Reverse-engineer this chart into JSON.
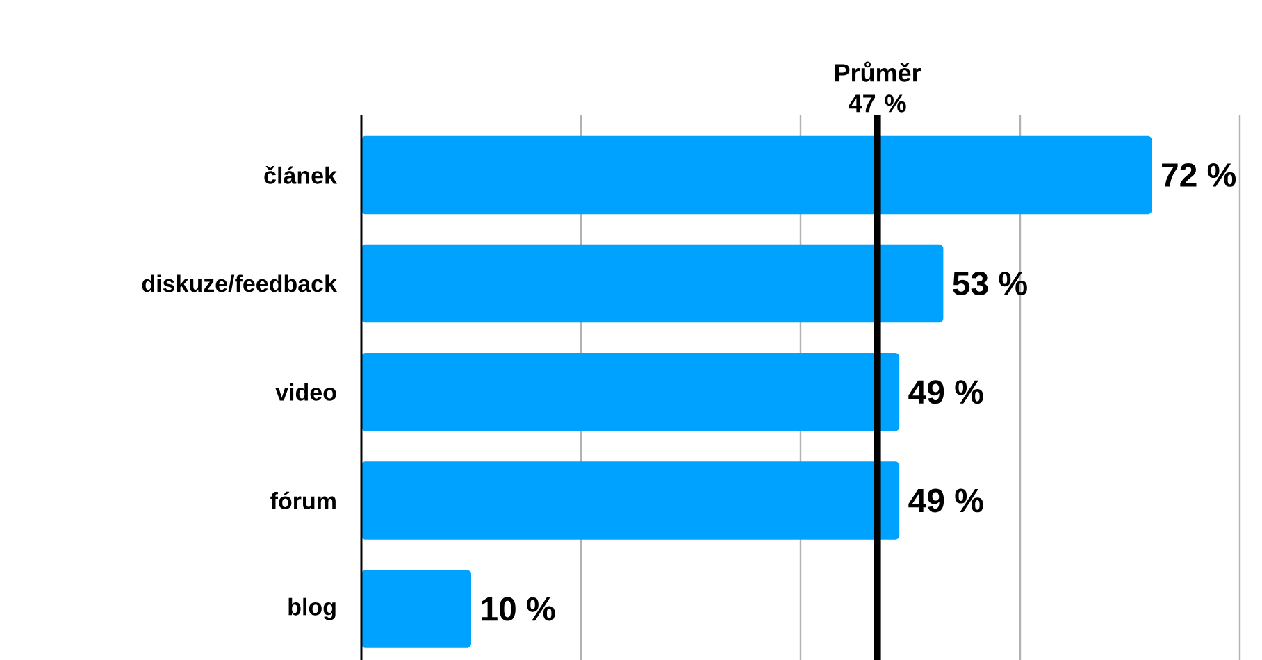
{
  "chart_data": {
    "type": "bar",
    "orientation": "horizontal",
    "categories": [
      "článek",
      "diskuze/feedback",
      "video",
      "fórum",
      "blog"
    ],
    "values": [
      72,
      53,
      49,
      49,
      10
    ],
    "value_labels": [
      "72 %",
      "53 %",
      "49 %",
      "49 %",
      "10 %"
    ],
    "color": "#00a2ff",
    "xlim": [
      0,
      80
    ],
    "xticks": [
      {
        "value": 20,
        "label": null
      },
      {
        "value": 40,
        "label": null
      },
      {
        "value": 60,
        "label": null
      },
      {
        "value": 80,
        "label": null
      }
    ],
    "grid": "x",
    "tick_labels": "y",
    "ref_lines": [
      {
        "axis": "x",
        "value": 47,
        "label": "Průměr 47 %",
        "color": "#000000"
      }
    ]
  }
}
